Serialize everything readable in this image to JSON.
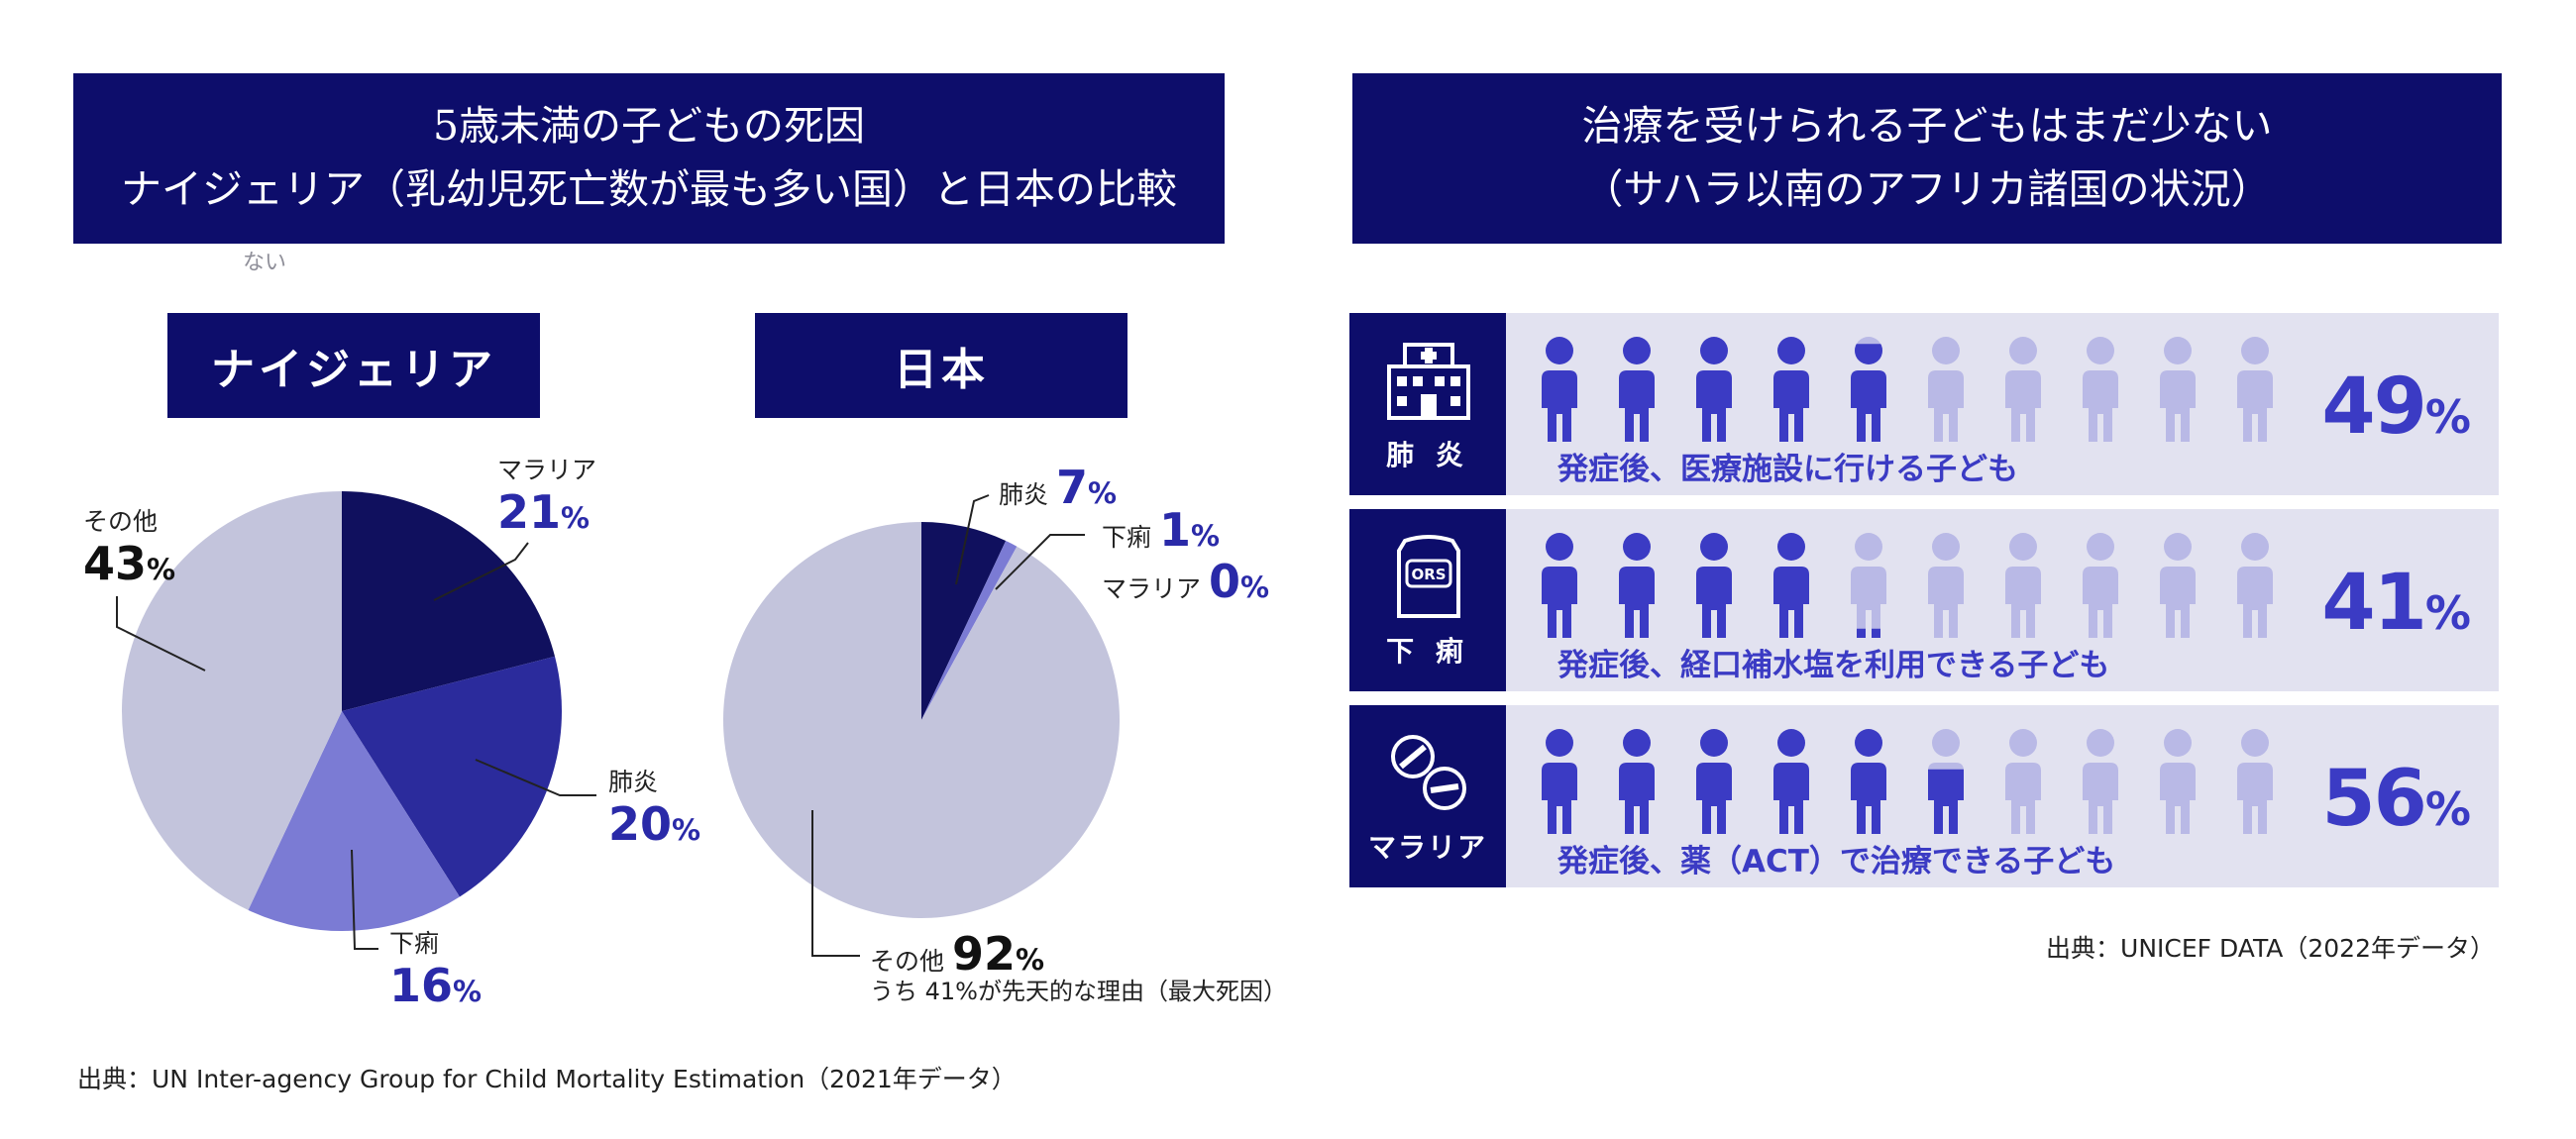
{
  "left_header": {
    "line1": "5歳未満の子どもの死因",
    "line2": "ナイジェリア（乳幼児死亡数が最も多い国）と日本の比較"
  },
  "right_header": {
    "line1": "治療を受けられる子どもはまだ少ない",
    "line2": "（サハラ以南のアフリカ諸国の状況）"
  },
  "stray_text": "ない",
  "chart_data": [
    {
      "type": "pie",
      "title": "ナイジェリア",
      "slices": [
        {
          "label": "マラリア",
          "value": 21,
          "color": "#10105e"
        },
        {
          "label": "肺炎",
          "value": 20,
          "color": "#2b2b9c"
        },
        {
          "label": "下痢",
          "value": 16,
          "color": "#7b7bd4"
        },
        {
          "label": "その他",
          "value": 43,
          "color": "#c3c4dc"
        }
      ]
    },
    {
      "type": "pie",
      "title": "日本",
      "slices": [
        {
          "label": "肺炎",
          "value": 7,
          "color": "#10105e"
        },
        {
          "label": "下痢",
          "value": 1,
          "color": "#7b7bd4"
        },
        {
          "label": "マラリア",
          "value": 0,
          "color": "#2b2b9c"
        },
        {
          "label": "その他",
          "value": 92,
          "color": "#c3c4dc"
        }
      ],
      "note": "うち 41%が先天的な理由（最大死因）"
    },
    {
      "type": "bar",
      "title": "",
      "unit": "%",
      "rows": [
        {
          "category": "肺 炎",
          "icon": "hospital-icon",
          "value": 49,
          "description": "発症後、医療施設に行ける子ども"
        },
        {
          "category": "下 痢",
          "icon": "ors-packet-icon",
          "value": 41,
          "description": "発症後、経口補水塩を利用できる子ども"
        },
        {
          "category": "マラリア",
          "icon": "pills-icon",
          "value": 56,
          "description": "発症後、薬（ACT）で治療できる子ども"
        }
      ],
      "people_per_row": 10,
      "colors": {
        "filled": "#3b3bc4",
        "empty": "#b9b9e6"
      }
    }
  ],
  "pct_sign": "%",
  "left_source": "出典：UN Inter-agency Group for Child Mortality Estimation（2021年データ）",
  "right_source": "出典：UNICEF DATA（2022年データ）",
  "colors": {
    "navy": "#0d0d6b",
    "accent_blue": "#2a2aa8",
    "row_bg": "#e2e2f0"
  }
}
